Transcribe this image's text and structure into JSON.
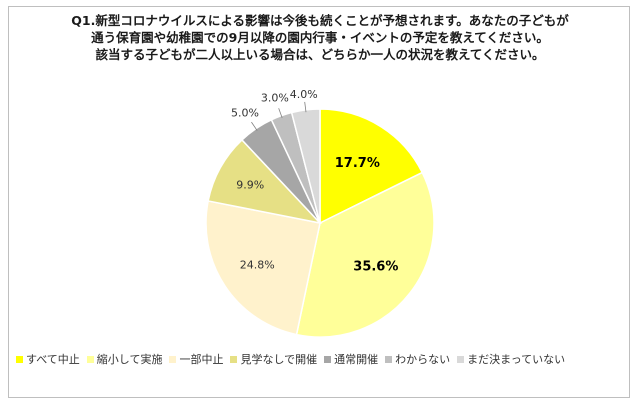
{
  "title_lines": [
    "Q1.新型コロナウイルスによる影響は今後も続くことが予想されます。あなたの子どもが",
    "通う保育園や幼稚園での9月以降の園内行事・イベントの予定を教えてください。",
    "該当する子どもが二人以上いる場合は、どちらか一人の状況を教えてください。"
  ],
  "chart_data": {
    "type": "pie",
    "title": "Q1.新型コロナウイルスによる影響は今後も続くことが予想されます。あなたの子どもが通う保育園や幼稚園での9月以降の園内行事・イベントの予定を教えてください。該当する子どもが二人以上いる場合は、どちらか一人の状況を教えてください。",
    "start_angle": "12 o'clock, clockwise",
    "legend_position": "bottom",
    "slices": [
      {
        "label": "すべて中止",
        "value": 17.7,
        "display": "17.7%",
        "color": "#ffff00",
        "bold": true
      },
      {
        "label": "縮小して実施",
        "value": 35.6,
        "display": "35.6%",
        "color": "#ffff99",
        "bold": true
      },
      {
        "label": "一部中止",
        "value": 24.8,
        "display": "24.8%",
        "color": "#fff2cc",
        "bold": false
      },
      {
        "label": "見学なしで開催",
        "value": 9.9,
        "display": "9.9%",
        "color": "#e6e085",
        "bold": false
      },
      {
        "label": "通常開催",
        "value": 5.0,
        "display": "5.0%",
        "color": "#a6a6a6",
        "bold": false
      },
      {
        "label": "わからない",
        "value": 3.0,
        "display": "3.0%",
        "color": "#bfbfbf",
        "bold": false
      },
      {
        "label": "まだ決まっていない",
        "value": 4.0,
        "display": "4.0%",
        "color": "#d9d9d9",
        "bold": false
      }
    ]
  }
}
